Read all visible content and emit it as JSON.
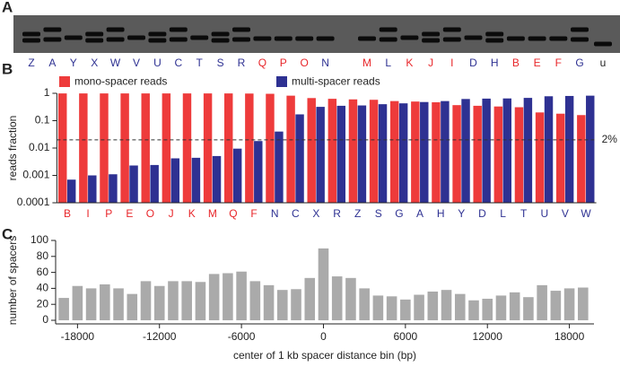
{
  "chart_data": [
    {
      "type": "gel",
      "panel_label": "A",
      "categories": [
        "Z",
        "A",
        "Y",
        "X",
        "W",
        "V",
        "U",
        "C",
        "T",
        "S",
        "R",
        "Q",
        "P",
        "O",
        "N",
        "M",
        "L",
        "K",
        "J",
        "I",
        "D",
        "H",
        "B",
        "E",
        "F",
        "G",
        "u"
      ],
      "label_colors": [
        "#2e3192",
        "#2e3192",
        "#2e3192",
        "#2e3192",
        "#2e3192",
        "#2e3192",
        "#2e3192",
        "#2e3192",
        "#2e3192",
        "#2e3192",
        "#2e3192",
        "#e8262a",
        "#e8262a",
        "#e8262a",
        "#2e3192",
        "#e8262a",
        "#2e3192",
        "#e8262a",
        "#e8262a",
        "#e8262a",
        "#2e3192",
        "#2e3192",
        "#e8262a",
        "#e8262a",
        "#e8262a",
        "#2e3192",
        "#222222"
      ]
    },
    {
      "type": "bar",
      "panel_label": "B",
      "log_scale": true,
      "ylabel": "reads fraction",
      "legend": "top",
      "categories": [
        "B",
        "I",
        "P",
        "E",
        "O",
        "J",
        "K",
        "M",
        "Q",
        "F",
        "N",
        "C",
        "X",
        "R",
        "Z",
        "S",
        "G",
        "A",
        "H",
        "Y",
        "D",
        "L",
        "T",
        "U",
        "V",
        "W"
      ],
      "category_colors": [
        "#e8262a",
        "#e8262a",
        "#e8262a",
        "#e8262a",
        "#e8262a",
        "#e8262a",
        "#e8262a",
        "#e8262a",
        "#e8262a",
        "#e8262a",
        "#2e3192",
        "#2e3192",
        "#2e3192",
        "#2e3192",
        "#2e3192",
        "#2e3192",
        "#2e3192",
        "#2e3192",
        "#2e3192",
        "#2e3192",
        "#2e3192",
        "#2e3192",
        "#2e3192",
        "#2e3192",
        "#2e3192",
        "#2e3192"
      ],
      "series": [
        {
          "name": "mono-spacer reads",
          "color": "#ee3b3b",
          "values": [
            0.99,
            0.99,
            0.99,
            0.99,
            0.99,
            0.99,
            0.99,
            0.99,
            0.99,
            0.98,
            0.96,
            0.82,
            0.67,
            0.63,
            0.6,
            0.58,
            0.52,
            0.5,
            0.47,
            0.37,
            0.35,
            0.33,
            0.31,
            0.2,
            0.18,
            0.16
          ]
        },
        {
          "name": "multi-spacer reads",
          "color": "#2e3192",
          "values": [
            0.0007,
            0.001,
            0.0011,
            0.0023,
            0.0024,
            0.0042,
            0.0044,
            0.0051,
            0.0095,
            0.018,
            0.04,
            0.17,
            0.32,
            0.35,
            0.36,
            0.4,
            0.43,
            0.48,
            0.52,
            0.62,
            0.64,
            0.65,
            0.68,
            0.78,
            0.8,
            0.82
          ]
        }
      ],
      "ylim": [
        0.0001,
        1
      ],
      "yticks": [
        0.0001,
        0.001,
        0.01,
        0.1,
        1
      ],
      "reference_line": {
        "value": 0.02,
        "label": "2%"
      }
    },
    {
      "type": "bar",
      "panel_label": "C",
      "ylabel": "number of spacers",
      "xlabel": "center of 1 kb spacer distance bin (bp)",
      "color": "#aaaaaa",
      "x": [
        -19000,
        -18000,
        -17000,
        -16000,
        -15000,
        -14000,
        -13000,
        -12000,
        -11000,
        -10000,
        -9000,
        -8000,
        -7000,
        -6000,
        -5000,
        -4000,
        -3000,
        -2000,
        -1000,
        0,
        1000,
        2000,
        3000,
        4000,
        5000,
        6000,
        7000,
        8000,
        9000,
        10000,
        11000,
        12000,
        13000,
        14000,
        15000,
        16000,
        17000,
        18000,
        19000
      ],
      "values": [
        28,
        43,
        40,
        45,
        40,
        33,
        49,
        43,
        49,
        49,
        48,
        58,
        59,
        61,
        49,
        44,
        38,
        39,
        53,
        90,
        55,
        53,
        40,
        31,
        30,
        26,
        32,
        36,
        38,
        33,
        25,
        27,
        31,
        35,
        29,
        44,
        37,
        40,
        41
      ],
      "xlim": [
        -19600,
        19800
      ],
      "xticks": [
        -18000,
        -12000,
        -6000,
        0,
        6000,
        12000,
        18000
      ],
      "ylim": [
        0,
        100
      ],
      "yticks": [
        0,
        20,
        40,
        60,
        80,
        100
      ]
    }
  ]
}
